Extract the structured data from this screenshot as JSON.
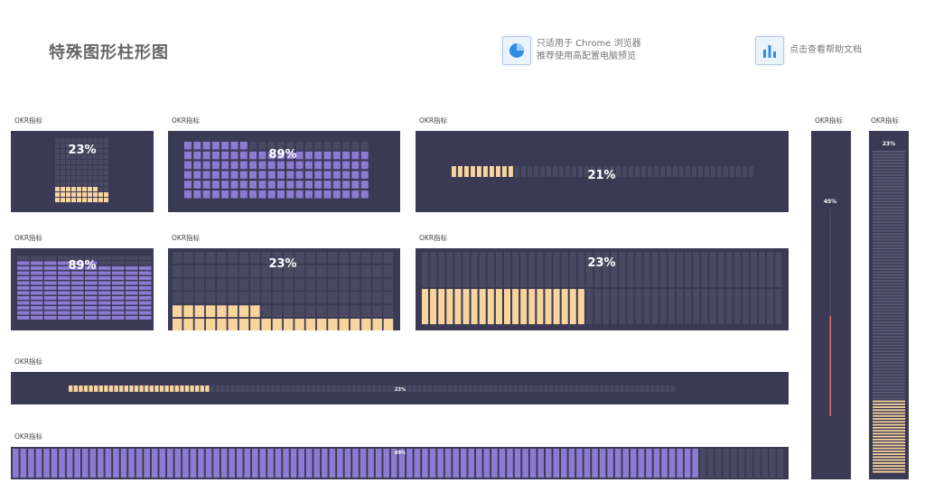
{
  "page": {
    "title": "特殊图形柱形图",
    "tip_browser_line1": "只适用于 Chrome 浏览器",
    "tip_browser_line2": "推荐使用高配置电脑预览",
    "tip_help": "点击查看帮助文档",
    "icons": {
      "browser": "pie-chart-icon",
      "help": "bar-chart-icon"
    }
  },
  "colors": {
    "panel_bg": "#3b3a55",
    "empty_cell": "#4a4962",
    "orange": "#f9d59e",
    "purple": "#8d7bd3",
    "red": "#e0706a"
  },
  "panels": {
    "p1": {
      "label": "OKR指标",
      "value": "23%",
      "percent": 23
    },
    "p2": {
      "label": "OKR指标",
      "value": "89%",
      "percent": 89
    },
    "p3": {
      "label": "OKR指标",
      "value": "21%",
      "percent": 21
    },
    "p4": {
      "label": "OKR指标",
      "value": "45%",
      "percent": 45
    },
    "p5": {
      "label": "OKR指标",
      "value": "23%",
      "percent": 23
    },
    "p6": {
      "label": "OKR指标",
      "value": "89%",
      "percent": 89
    },
    "p7": {
      "label": "OKR指标",
      "value": "23%",
      "percent": 23
    },
    "p8": {
      "label": "OKR指标",
      "value": "23%",
      "percent": 23
    },
    "p9": {
      "label": "OKR指标",
      "value": "23%",
      "percent": 23
    },
    "p10": {
      "label": "OKR指标",
      "value": "89%",
      "percent": 89
    }
  },
  "chart_data": [
    {
      "type": "bar",
      "title": "OKR指标",
      "values": [
        23
      ],
      "ylim": [
        0,
        100
      ]
    },
    {
      "type": "bar",
      "title": "OKR指标",
      "values": [
        89
      ],
      "ylim": [
        0,
        100
      ]
    },
    {
      "type": "bar",
      "title": "OKR指标",
      "values": [
        21
      ],
      "ylim": [
        0,
        100
      ]
    },
    {
      "type": "bar",
      "title": "OKR指标",
      "values": [
        45
      ],
      "ylim": [
        0,
        100
      ]
    },
    {
      "type": "bar",
      "title": "OKR指标",
      "values": [
        23
      ],
      "ylim": [
        0,
        100
      ]
    },
    {
      "type": "bar",
      "title": "OKR指标",
      "values": [
        89
      ],
      "ylim": [
        0,
        100
      ]
    },
    {
      "type": "bar",
      "title": "OKR指标",
      "values": [
        23
      ],
      "ylim": [
        0,
        100
      ]
    },
    {
      "type": "bar",
      "title": "OKR指标",
      "values": [
        23
      ],
      "ylim": [
        0,
        100
      ]
    },
    {
      "type": "bar",
      "title": "OKR指标",
      "values": [
        23
      ],
      "ylim": [
        0,
        100
      ]
    },
    {
      "type": "bar",
      "title": "OKR指标",
      "values": [
        89
      ],
      "ylim": [
        0,
        100
      ]
    }
  ]
}
